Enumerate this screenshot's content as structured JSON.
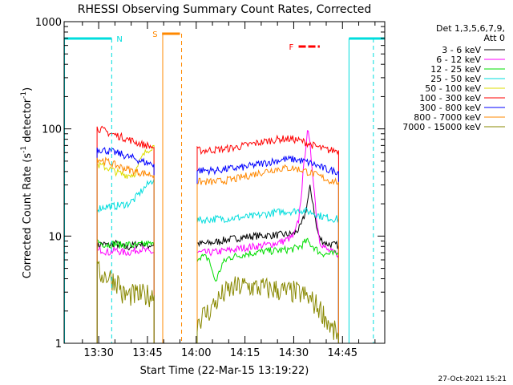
{
  "chart_data": {
    "type": "line",
    "title": "RHESSI Observing Summary Count Rates, Corrected",
    "xlabel": "Start Time (22-Mar-15 13:19:22)",
    "ylabel": "Corrected Count Rate (s⁻¹ detector⁻¹)",
    "ylabel_main": "Corrected Count Rate (s",
    "ylabel_sup1": "-1",
    "ylabel_mid": " detector",
    "ylabel_sup2": "-1",
    "ylabel_end": ")",
    "yscale": "log",
    "ylim": [
      1,
      1000
    ],
    "xlim": [
      "13:19:22",
      "14:58:00"
    ],
    "xlim_min": [
      79.37,
      178
    ],
    "y_ticks": [
      {
        "value": 1,
        "label": "1"
      },
      {
        "value": 10,
        "label": "10"
      },
      {
        "value": 100,
        "label": "100"
      },
      {
        "value": 1000,
        "label": "1000"
      }
    ],
    "x_ticks": [
      {
        "min": 90,
        "label": "13:30"
      },
      {
        "min": 105,
        "label": "13:45"
      },
      {
        "min": 120,
        "label": "14:00"
      },
      {
        "min": 135,
        "label": "14:15"
      },
      {
        "min": 150,
        "label": "14:30"
      },
      {
        "min": 165,
        "label": "14:45"
      }
    ],
    "legend": {
      "placement": "right",
      "header": [
        "Det 1,3,5,6,7,9,",
        "Att 0"
      ],
      "entries": [
        {
          "label": "3 - 6 keV",
          "color": "#000000"
        },
        {
          "label": "6 - 12 keV",
          "color": "#ff00ff"
        },
        {
          "label": "12 - 25 keV",
          "color": "#00dd00"
        },
        {
          "label": "25 - 50 keV",
          "color": "#00dddd"
        },
        {
          "label": "50 - 100 keV",
          "color": "#dddd00"
        },
        {
          "label": "100 - 300 keV",
          "color": "#ff0000"
        },
        {
          "label": "300 - 800 keV",
          "color": "#0000ff"
        },
        {
          "label": "800 - 7000 keV",
          "color": "#ff8800"
        },
        {
          "label": "7000 - 15000 keV",
          "color": "#888800"
        }
      ]
    },
    "annotations": {
      "night": {
        "label": "N",
        "color": "#00dddd",
        "segments": [
          [
            79.37,
            94
          ],
          [
            167,
            178
          ]
        ],
        "dashed_x": [
          94,
          174.5
        ],
        "solid_x": [
          79.5,
          167
        ]
      },
      "saa": {
        "label": "S",
        "color": "#ff8800",
        "segment": [
          109.5,
          115
        ],
        "solid_x": [
          109.7
        ],
        "dashed_x": [
          115.5
        ]
      },
      "flare": {
        "label": "F",
        "color": "#ff0000",
        "segment": [
          151.5,
          158
        ]
      }
    },
    "series": [
      {
        "name": "3 - 6 keV",
        "color": "#000000",
        "segments": [
          {
            "x": [
              89.5,
              91,
              93,
              95,
              97,
              99,
              101,
              103,
              105,
              107
            ],
            "y": [
              8,
              8.5,
              8.2,
              8.6,
              8,
              7.8,
              8.3,
              8.5,
              8.1,
              8.4
            ]
          },
          {
            "x": [
              120.3,
              123,
              126,
              129,
              132,
              135,
              138,
              141,
              144,
              147,
              150,
              152,
              153.5,
              155,
              156,
              157,
              158,
              160,
              162,
              163.8
            ],
            "y": [
              8.5,
              8.5,
              8.8,
              9.2,
              9.5,
              9.8,
              10,
              10.1,
              10.2,
              10.3,
              10.5,
              12,
              16,
              28,
              20,
              12,
              9.5,
              8.5,
              8.3,
              8.2
            ]
          }
        ]
      },
      {
        "name": "6 - 12 keV",
        "color": "#ff00ff",
        "segments": [
          {
            "x": [
              89.5,
              91,
              93,
              95,
              97,
              99,
              101,
              103,
              105,
              107
            ],
            "y": [
              7.2,
              7.5,
              7,
              7.4,
              7.1,
              7,
              7.3,
              7.6,
              7.2,
              7
            ]
          },
          {
            "x": [
              120.3,
              123,
              126,
              129,
              132,
              135,
              138,
              141,
              144,
              147,
              150,
              151.5,
              152.5,
              153.5,
              154.2,
              155,
              156,
              157,
              158,
              160,
              162,
              163.8
            ],
            "y": [
              7,
              7,
              7.1,
              7.3,
              7.5,
              7.8,
              8,
              8.2,
              8.5,
              9,
              10,
              14,
              28,
              60,
              100,
              70,
              35,
              15,
              9,
              7.5,
              7,
              6.8
            ]
          }
        ]
      },
      {
        "name": "12 - 25 keV",
        "color": "#00dd00",
        "segments": [
          {
            "x": [
              89.5,
              91,
              93,
              95,
              97,
              99,
              101,
              103,
              105,
              107
            ],
            "y": [
              9,
              8.5,
              8.3,
              8.5,
              8.2,
              8.4,
              8.1,
              8.3,
              8.5,
              8.2
            ]
          },
          {
            "x": [
              120.3,
              121,
              123,
              124,
              125,
              126,
              127,
              128,
              130,
              132,
              135,
              138,
              141,
              144,
              147,
              150,
              152,
              154,
              156,
              158,
              160,
              163.8
            ],
            "y": [
              6.2,
              6.5,
              6.3,
              6.1,
              4.5,
              3.8,
              4.5,
              5.5,
              6.3,
              6.5,
              6.8,
              7,
              7.2,
              7.3,
              7.4,
              7.6,
              8,
              9,
              8,
              7,
              6.8,
              6.8
            ]
          }
        ]
      },
      {
        "name": "25 - 50 keV",
        "color": "#00dddd",
        "segments": [
          {
            "x": [
              89.5,
              91,
              93,
              95,
              97,
              99,
              100,
              101,
              102,
              103,
              104,
              105,
              106,
              107
            ],
            "y": [
              18,
              18.5,
              19,
              19,
              19.5,
              20,
              21,
              22,
              24,
              26,
              28,
              30,
              32,
              34
            ]
          },
          {
            "x": [
              120.3,
              123,
              126,
              129,
              132,
              135,
              138,
              141,
              144,
              147,
              150,
              152,
              154,
              156,
              158,
              160,
              162,
              163.8
            ],
            "y": [
              14,
              14.2,
              14.5,
              14.5,
              14.8,
              15,
              15.3,
              16,
              16.5,
              17,
              17,
              17.5,
              17,
              16.5,
              15.5,
              15,
              14.5,
              14.5
            ]
          }
        ]
      },
      {
        "name": "50 - 100 keV",
        "color": "#dddd00",
        "segments": [
          {
            "x": [
              89.5,
              91,
              93,
              95,
              97,
              99,
              101,
              102,
              103,
              104,
              105,
              106,
              107
            ],
            "y": [
              46,
              45,
              43,
              40,
              38,
              37,
              38,
              44,
              52,
              58,
              63,
              67,
              70
            ]
          }
        ]
      },
      {
        "name": "100 - 300 keV",
        "color": "#ff0000",
        "segments": [
          {
            "x": [
              89.5,
              91,
              93,
              95,
              97,
              99,
              101,
              103,
              105,
              107
            ],
            "y": [
              102,
              98,
              92,
              88,
              84,
              80,
              76,
              72,
              70,
              67
            ]
          },
          {
            "x": [
              120.3,
              123,
              126,
              129,
              132,
              135,
              138,
              141,
              144,
              147,
              150,
              153,
              156,
              159,
              161,
              163.8
            ],
            "y": [
              63,
              63,
              64,
              65,
              67,
              70,
              73,
              76,
              79,
              81,
              80,
              76,
              70,
              65,
              63,
              63
            ]
          }
        ]
      },
      {
        "name": "300 - 800 keV",
        "color": "#0000ff",
        "segments": [
          {
            "x": [
              89.5,
              91,
              93,
              95,
              97,
              99,
              101,
              103,
              105,
              107
            ],
            "y": [
              65,
              64,
              62,
              60,
              58,
              55,
              53,
              50,
              48,
              47
            ]
          },
          {
            "x": [
              120.3,
              123,
              126,
              129,
              132,
              135,
              138,
              141,
              144,
              147,
              150,
              153,
              156,
              159,
              161,
              163.8
            ],
            "y": [
              41,
              41,
              41,
              42,
              43,
              44,
              46,
              48,
              50,
              52,
              52,
              50,
              47,
              43,
              41,
              40
            ]
          }
        ]
      },
      {
        "name": "800 - 7000 keV",
        "color": "#ff8800",
        "segments": [
          {
            "x": [
              89.5,
              91,
              93,
              95,
              97,
              99,
              101,
              103,
              105,
              107
            ],
            "y": [
              53,
              51,
              49,
              46,
              44,
              42,
              40,
              39,
              38,
              37
            ]
          },
          {
            "x": [
              120.3,
              123,
              126,
              129,
              132,
              135,
              138,
              141,
              144,
              147,
              150,
              153,
              156,
              159,
              161,
              163.8
            ],
            "y": [
              32,
              32,
              32,
              33,
              34,
              36,
              38,
              40,
              42,
              43,
              43,
              41,
              38,
              35,
              33,
              32
            ]
          }
        ]
      },
      {
        "name": "7000 - 15000 keV",
        "color": "#888800",
        "segments": [
          {
            "x": [
              89.5,
              91,
              93,
              95,
              96.5,
              97,
              99,
              101,
              103,
              105,
              107
            ],
            "y": [
              4.6,
              4.4,
              4.2,
              3.8,
              3.6,
              2.8,
              2.8,
              2.8,
              2.8,
              2.8,
              2.8
            ]
          },
          {
            "x": [
              120.3,
              122,
              124,
              125,
              126,
              128,
              130,
              132,
              134,
              136,
              138,
              140,
              142,
              144,
              146,
              148,
              150,
              152,
              154,
              156,
              158,
              160,
              162,
              163.8
            ],
            "y": [
              1.6,
              1.8,
              2,
              2.2,
              2.4,
              2.8,
              3.1,
              3.3,
              3.4,
              3.4,
              3.3,
              3.3,
              3.2,
              3.2,
              3.1,
              3,
              3,
              2.9,
              2.7,
              2.4,
              2.1,
              1.7,
              1.3,
              1.2
            ]
          }
        ]
      }
    ]
  },
  "footer": {
    "timestamp": "27-Oct-2021 15:21"
  }
}
